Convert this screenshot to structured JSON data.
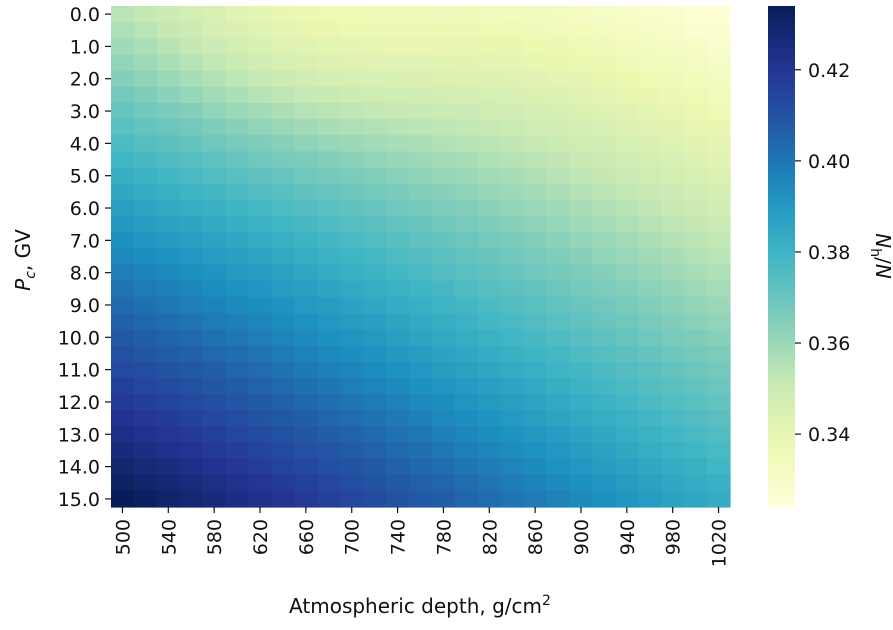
{
  "chart_data": {
    "type": "heatmap",
    "title": "",
    "xlabel": "Atmospheric depth, g/cm",
    "xlabel_sup": "2",
    "ylabel_italic": "P",
    "ylabel_sub": "c",
    "ylabel_rest": ", GV",
    "colorbar_label_italic_n": "N",
    "colorbar_label_sub": "h",
    "colorbar_label_rest": "/",
    "colorbar_label_italic_n2": "N",
    "colormap": "YlGnBu",
    "vmin": 0.324,
    "vmax": 0.434,
    "colorbar_ticks": [
      "0.34",
      "0.36",
      "0.38",
      "0.40",
      "0.42"
    ],
    "x_values": [
      500,
      520,
      540,
      560,
      580,
      600,
      620,
      640,
      660,
      680,
      700,
      720,
      740,
      760,
      780,
      800,
      820,
      840,
      860,
      880,
      900,
      920,
      940,
      960,
      980,
      1000,
      1020
    ],
    "x_tick_labels": [
      "500",
      "540",
      "580",
      "620",
      "660",
      "700",
      "740",
      "780",
      "820",
      "860",
      "900",
      "940",
      "980",
      "1020"
    ],
    "y_values": [
      0.0,
      0.5,
      1.0,
      1.5,
      2.0,
      2.5,
      3.0,
      3.5,
      4.0,
      4.5,
      5.0,
      5.5,
      6.0,
      6.5,
      7.0,
      7.5,
      8.0,
      8.5,
      9.0,
      9.5,
      10.0,
      10.5,
      11.0,
      11.5,
      12.0,
      12.5,
      13.0,
      13.5,
      14.0,
      14.5,
      15.0
    ],
    "y_tick_labels": [
      "0.0",
      "1.0",
      "2.0",
      "3.0",
      "4.0",
      "5.0",
      "6.0",
      "7.0",
      "8.0",
      "9.0",
      "10.0",
      "11.0",
      "12.0",
      "13.0",
      "14.0",
      "15.0"
    ],
    "z_model": {
      "description_of_grid": "values N_h/N at each (depth, cutoff) cell, generated from anchor estimates read off the colour scale",
      "corner_top_left": 0.357,
      "corner_top_right": 0.325,
      "corner_bottom_left": 0.434,
      "corner_bottom_right": 0.383
    }
  }
}
